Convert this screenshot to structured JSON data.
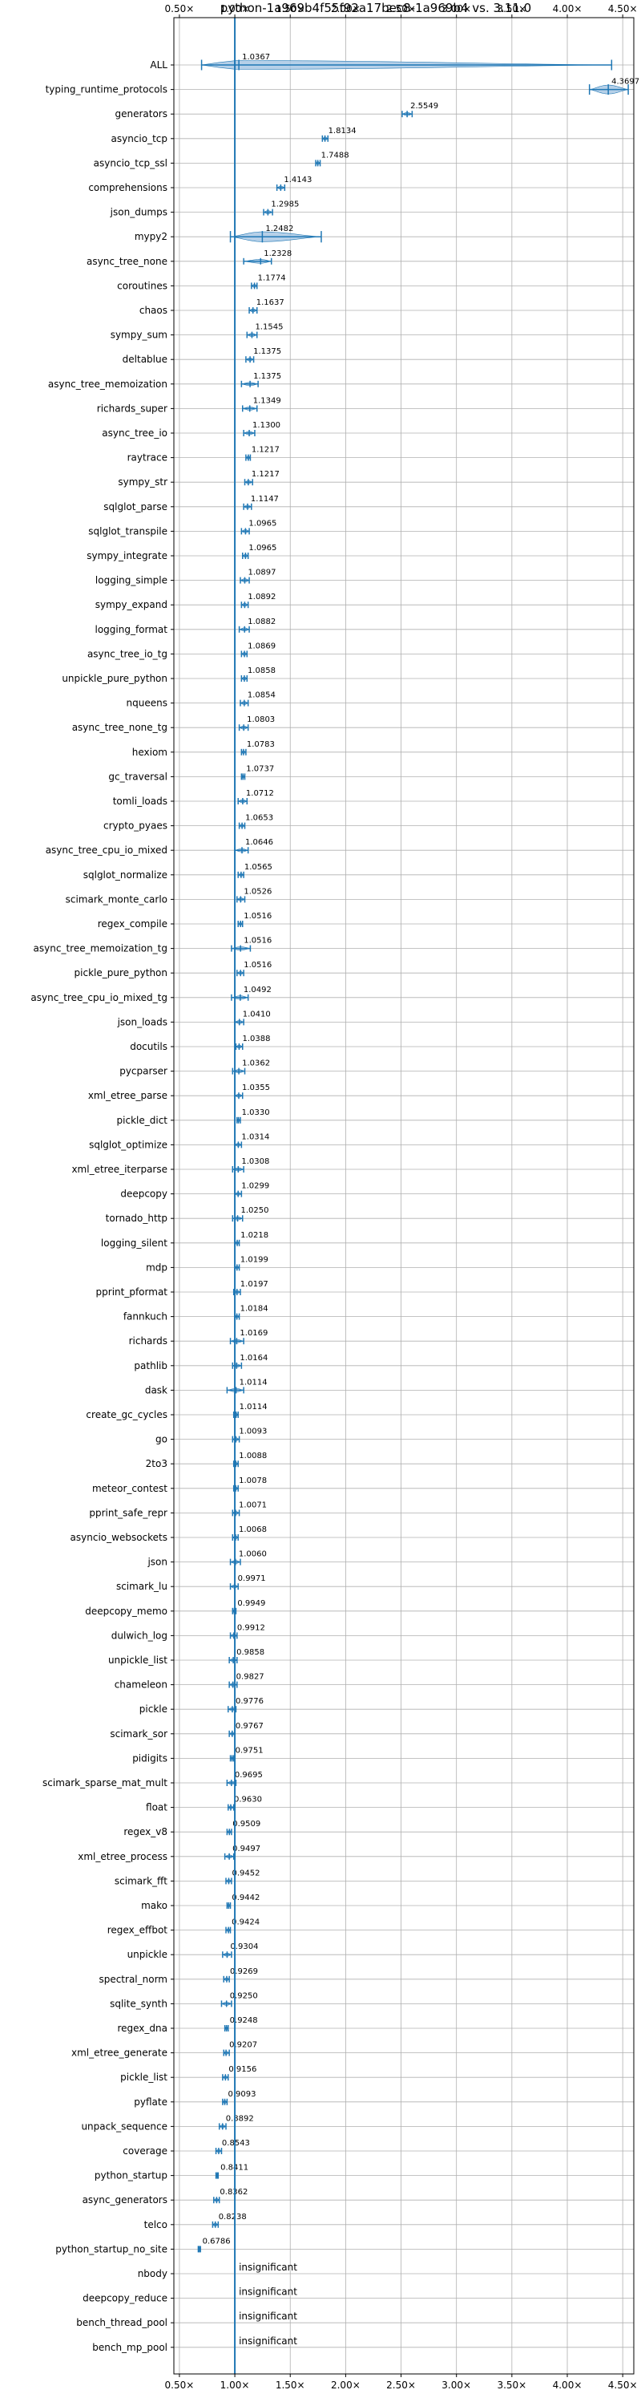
{
  "chart_data": {
    "type": "violin",
    "title": "python-1a969b4f55f92a17bec8-1a969b4 vs. 3.11.0",
    "xlabel": "",
    "ylabel": "",
    "xlim": [
      0.45,
      4.6
    ],
    "x_ticks": [
      0.5,
      1.0,
      1.5,
      2.0,
      2.5,
      3.0,
      3.5,
      4.0,
      4.5
    ],
    "x_tick_labels": [
      "0.50×",
      "1.00×",
      "1.50×",
      "2.00×",
      "2.50×",
      "3.00×",
      "3.50×",
      "4.00×",
      "4.50×"
    ],
    "reference_line": 1.0,
    "grid": true,
    "colors": {
      "fill": "#a9c8e4",
      "stroke": "#1f77b4"
    },
    "insignificant_label": "insignificant",
    "benchmarks": [
      {
        "name": "ALL",
        "label": "1.0367",
        "value": 1.0367,
        "min": 0.7,
        "max": 4.4,
        "w": 0.18
      },
      {
        "name": "typing_runtime_protocols",
        "label": "4.3697",
        "value": 4.3697,
        "min": 4.2,
        "max": 4.55,
        "w": 0.18
      },
      {
        "name": "generators",
        "label": "2.5549",
        "value": 2.5549,
        "min": 2.51,
        "max": 2.6,
        "w": 0.06
      },
      {
        "name": "asyncio_tcp",
        "label": "1.8134",
        "value": 1.8134,
        "min": 1.79,
        "max": 1.84,
        "w": 0.05
      },
      {
        "name": "asyncio_tcp_ssl",
        "label": "1.7488",
        "value": 1.7488,
        "min": 1.73,
        "max": 1.77,
        "w": 0.04
      },
      {
        "name": "comprehensions",
        "label": "1.4143",
        "value": 1.4143,
        "min": 1.38,
        "max": 1.45,
        "w": 0.05
      },
      {
        "name": "json_dumps",
        "label": "1.2985",
        "value": 1.2985,
        "min": 1.26,
        "max": 1.34,
        "w": 0.05
      },
      {
        "name": "mypy2",
        "label": "1.2482",
        "value": 1.2482,
        "min": 0.96,
        "max": 1.78,
        "w": 0.2
      },
      {
        "name": "async_tree_none",
        "label": "1.2328",
        "value": 1.2328,
        "min": 1.08,
        "max": 1.33,
        "w": 0.08
      },
      {
        "name": "coroutines",
        "label": "1.1774",
        "value": 1.1774,
        "min": 1.15,
        "max": 1.2,
        "w": 0.05
      },
      {
        "name": "chaos",
        "label": "1.1637",
        "value": 1.1637,
        "min": 1.13,
        "max": 1.2,
        "w": 0.05
      },
      {
        "name": "sympy_sum",
        "label": "1.1545",
        "value": 1.1545,
        "min": 1.11,
        "max": 1.2,
        "w": 0.05
      },
      {
        "name": "deltablue",
        "label": "1.1375",
        "value": 1.1375,
        "min": 1.1,
        "max": 1.17,
        "w": 0.05
      },
      {
        "name": "async_tree_memoization",
        "label": "1.1375",
        "value": 1.1375,
        "min": 1.06,
        "max": 1.21,
        "w": 0.06
      },
      {
        "name": "richards_super",
        "label": "1.1349",
        "value": 1.1349,
        "min": 1.07,
        "max": 1.2,
        "w": 0.05
      },
      {
        "name": "async_tree_io",
        "label": "1.1300",
        "value": 1.13,
        "min": 1.08,
        "max": 1.18,
        "w": 0.06
      },
      {
        "name": "raytrace",
        "label": "1.1217",
        "value": 1.1217,
        "min": 1.1,
        "max": 1.14,
        "w": 0.04
      },
      {
        "name": "sympy_str",
        "label": "1.1217",
        "value": 1.1217,
        "min": 1.09,
        "max": 1.16,
        "w": 0.05
      },
      {
        "name": "sqlglot_parse",
        "label": "1.1147",
        "value": 1.1147,
        "min": 1.08,
        "max": 1.15,
        "w": 0.05
      },
      {
        "name": "sqlglot_transpile",
        "label": "1.0965",
        "value": 1.0965,
        "min": 1.06,
        "max": 1.13,
        "w": 0.05
      },
      {
        "name": "sympy_integrate",
        "label": "1.0965",
        "value": 1.0965,
        "min": 1.07,
        "max": 1.12,
        "w": 0.04
      },
      {
        "name": "logging_simple",
        "label": "1.0897",
        "value": 1.0897,
        "min": 1.05,
        "max": 1.13,
        "w": 0.05
      },
      {
        "name": "sympy_expand",
        "label": "1.0892",
        "value": 1.0892,
        "min": 1.06,
        "max": 1.12,
        "w": 0.04
      },
      {
        "name": "logging_format",
        "label": "1.0882",
        "value": 1.0882,
        "min": 1.04,
        "max": 1.13,
        "w": 0.05
      },
      {
        "name": "async_tree_io_tg",
        "label": "1.0869",
        "value": 1.0869,
        "min": 1.06,
        "max": 1.11,
        "w": 0.04
      },
      {
        "name": "unpickle_pure_python",
        "label": "1.0858",
        "value": 1.0858,
        "min": 1.06,
        "max": 1.11,
        "w": 0.04
      },
      {
        "name": "nqueens",
        "label": "1.0854",
        "value": 1.0854,
        "min": 1.05,
        "max": 1.12,
        "w": 0.05
      },
      {
        "name": "async_tree_none_tg",
        "label": "1.0803",
        "value": 1.0803,
        "min": 1.04,
        "max": 1.12,
        "w": 0.05
      },
      {
        "name": "hexiom",
        "label": "1.0783",
        "value": 1.0783,
        "min": 1.06,
        "max": 1.1,
        "w": 0.04
      },
      {
        "name": "gc_traversal",
        "label": "1.0737",
        "value": 1.0737,
        "min": 1.06,
        "max": 1.09,
        "w": 0.03
      },
      {
        "name": "tomli_loads",
        "label": "1.0712",
        "value": 1.0712,
        "min": 1.03,
        "max": 1.11,
        "w": 0.05
      },
      {
        "name": "crypto_pyaes",
        "label": "1.0653",
        "value": 1.0653,
        "min": 1.04,
        "max": 1.09,
        "w": 0.04
      },
      {
        "name": "async_tree_cpu_io_mixed",
        "label": "1.0646",
        "value": 1.0646,
        "min": 1.0,
        "max": 1.12,
        "w": 0.06
      },
      {
        "name": "sqlglot_normalize",
        "label": "1.0565",
        "value": 1.0565,
        "min": 1.03,
        "max": 1.08,
        "w": 0.04
      },
      {
        "name": "scimark_monte_carlo",
        "label": "1.0526",
        "value": 1.0526,
        "min": 1.02,
        "max": 1.09,
        "w": 0.05
      },
      {
        "name": "regex_compile",
        "label": "1.0516",
        "value": 1.0516,
        "min": 1.03,
        "max": 1.07,
        "w": 0.04
      },
      {
        "name": "async_tree_memoization_tg",
        "label": "1.0516",
        "value": 1.0516,
        "min": 0.97,
        "max": 1.14,
        "w": 0.07
      },
      {
        "name": "pickle_pure_python",
        "label": "1.0516",
        "value": 1.0516,
        "min": 1.02,
        "max": 1.08,
        "w": 0.04
      },
      {
        "name": "async_tree_cpu_io_mixed_tg",
        "label": "1.0492",
        "value": 1.0492,
        "min": 0.97,
        "max": 1.12,
        "w": 0.07
      },
      {
        "name": "json_loads",
        "label": "1.0410",
        "value": 1.041,
        "min": 1.0,
        "max": 1.08,
        "w": 0.05
      },
      {
        "name": "docutils",
        "label": "1.0388",
        "value": 1.0388,
        "min": 1.01,
        "max": 1.07,
        "w": 0.04
      },
      {
        "name": "pycparser",
        "label": "1.0362",
        "value": 1.0362,
        "min": 0.98,
        "max": 1.09,
        "w": 0.06
      },
      {
        "name": "xml_etree_parse",
        "label": "1.0355",
        "value": 1.0355,
        "min": 1.0,
        "max": 1.07,
        "w": 0.05
      },
      {
        "name": "pickle_dict",
        "label": "1.0330",
        "value": 1.033,
        "min": 1.02,
        "max": 1.05,
        "w": 0.03
      },
      {
        "name": "sqlglot_optimize",
        "label": "1.0314",
        "value": 1.0314,
        "min": 1.0,
        "max": 1.06,
        "w": 0.04
      },
      {
        "name": "xml_etree_iterparse",
        "label": "1.0308",
        "value": 1.0308,
        "min": 0.98,
        "max": 1.08,
        "w": 0.06
      },
      {
        "name": "deepcopy",
        "label": "1.0299",
        "value": 1.0299,
        "min": 1.0,
        "max": 1.06,
        "w": 0.04
      },
      {
        "name": "tornado_http",
        "label": "1.0250",
        "value": 1.025,
        "min": 0.98,
        "max": 1.07,
        "w": 0.05
      },
      {
        "name": "logging_silent",
        "label": "1.0218",
        "value": 1.0218,
        "min": 1.0,
        "max": 1.04,
        "w": 0.03
      },
      {
        "name": "mdp",
        "label": "1.0199",
        "value": 1.0199,
        "min": 1.0,
        "max": 1.04,
        "w": 0.03
      },
      {
        "name": "pprint_pformat",
        "label": "1.0197",
        "value": 1.0197,
        "min": 0.99,
        "max": 1.05,
        "w": 0.04
      },
      {
        "name": "fannkuch",
        "label": "1.0184",
        "value": 1.0184,
        "min": 1.0,
        "max": 1.04,
        "w": 0.03
      },
      {
        "name": "richards",
        "label": "1.0169",
        "value": 1.0169,
        "min": 0.96,
        "max": 1.08,
        "w": 0.06
      },
      {
        "name": "pathlib",
        "label": "1.0164",
        "value": 1.0164,
        "min": 0.98,
        "max": 1.06,
        "w": 0.05
      },
      {
        "name": "dask",
        "label": "1.0114",
        "value": 1.0114,
        "min": 0.93,
        "max": 1.08,
        "w": 0.07
      },
      {
        "name": "create_gc_cycles",
        "label": "1.0114",
        "value": 1.0114,
        "min": 0.99,
        "max": 1.03,
        "w": 0.03
      },
      {
        "name": "go",
        "label": "1.0093",
        "value": 1.0093,
        "min": 0.98,
        "max": 1.04,
        "w": 0.04
      },
      {
        "name": "2to3",
        "label": "1.0088",
        "value": 1.0088,
        "min": 0.99,
        "max": 1.03,
        "w": 0.03
      },
      {
        "name": "meteor_contest",
        "label": "1.0078",
        "value": 1.0078,
        "min": 0.99,
        "max": 1.03,
        "w": 0.03
      },
      {
        "name": "pprint_safe_repr",
        "label": "1.0071",
        "value": 1.0071,
        "min": 0.98,
        "max": 1.04,
        "w": 0.04
      },
      {
        "name": "asyncio_websockets",
        "label": "1.0068",
        "value": 1.0068,
        "min": 0.98,
        "max": 1.03,
        "w": 0.03
      },
      {
        "name": "json",
        "label": "1.0060",
        "value": 1.006,
        "min": 0.96,
        "max": 1.05,
        "w": 0.05
      },
      {
        "name": "scimark_lu",
        "label": "0.9971",
        "value": 0.9971,
        "min": 0.96,
        "max": 1.03,
        "w": 0.05
      },
      {
        "name": "deepcopy_memo",
        "label": "0.9949",
        "value": 0.9949,
        "min": 0.98,
        "max": 1.01,
        "w": 0.03
      },
      {
        "name": "dulwich_log",
        "label": "0.9912",
        "value": 0.9912,
        "min": 0.96,
        "max": 1.02,
        "w": 0.04
      },
      {
        "name": "unpickle_list",
        "label": "0.9858",
        "value": 0.9858,
        "min": 0.95,
        "max": 1.02,
        "w": 0.05
      },
      {
        "name": "chameleon",
        "label": "0.9827",
        "value": 0.9827,
        "min": 0.95,
        "max": 1.02,
        "w": 0.05
      },
      {
        "name": "pickle",
        "label": "0.9776",
        "value": 0.9776,
        "min": 0.94,
        "max": 1.01,
        "w": 0.05
      },
      {
        "name": "scimark_sor",
        "label": "0.9767",
        "value": 0.9767,
        "min": 0.95,
        "max": 1.0,
        "w": 0.04
      },
      {
        "name": "pidigits",
        "label": "0.9751",
        "value": 0.9751,
        "min": 0.96,
        "max": 0.99,
        "w": 0.03
      },
      {
        "name": "scimark_sparse_mat_mult",
        "label": "0.9695",
        "value": 0.9695,
        "min": 0.93,
        "max": 1.01,
        "w": 0.05
      },
      {
        "name": "float",
        "label": "0.9630",
        "value": 0.963,
        "min": 0.94,
        "max": 0.99,
        "w": 0.04
      },
      {
        "name": "regex_v8",
        "label": "0.9509",
        "value": 0.9509,
        "min": 0.93,
        "max": 0.97,
        "w": 0.03
      },
      {
        "name": "xml_etree_process",
        "label": "0.9497",
        "value": 0.9497,
        "min": 0.91,
        "max": 0.99,
        "w": 0.05
      },
      {
        "name": "scimark_fft",
        "label": "0.9452",
        "value": 0.9452,
        "min": 0.92,
        "max": 0.97,
        "w": 0.04
      },
      {
        "name": "mako",
        "label": "0.9442",
        "value": 0.9442,
        "min": 0.93,
        "max": 0.96,
        "w": 0.03
      },
      {
        "name": "regex_effbot",
        "label": "0.9424",
        "value": 0.9424,
        "min": 0.92,
        "max": 0.96,
        "w": 0.03
      },
      {
        "name": "unpickle",
        "label": "0.9304",
        "value": 0.9304,
        "min": 0.89,
        "max": 0.97,
        "w": 0.05
      },
      {
        "name": "spectral_norm",
        "label": "0.9269",
        "value": 0.9269,
        "min": 0.9,
        "max": 0.95,
        "w": 0.04
      },
      {
        "name": "sqlite_synth",
        "label": "0.9250",
        "value": 0.925,
        "min": 0.88,
        "max": 0.97,
        "w": 0.06
      },
      {
        "name": "regex_dna",
        "label": "0.9248",
        "value": 0.9248,
        "min": 0.91,
        "max": 0.94,
        "w": 0.03
      },
      {
        "name": "xml_etree_generate",
        "label": "0.9207",
        "value": 0.9207,
        "min": 0.9,
        "max": 0.95,
        "w": 0.04
      },
      {
        "name": "pickle_list",
        "label": "0.9156",
        "value": 0.9156,
        "min": 0.89,
        "max": 0.94,
        "w": 0.04
      },
      {
        "name": "pyflate",
        "label": "0.9093",
        "value": 0.9093,
        "min": 0.89,
        "max": 0.93,
        "w": 0.03
      },
      {
        "name": "unpack_sequence",
        "label": "0.8892",
        "value": 0.8892,
        "min": 0.86,
        "max": 0.92,
        "w": 0.04
      },
      {
        "name": "coverage",
        "label": "0.8543",
        "value": 0.8543,
        "min": 0.83,
        "max": 0.88,
        "w": 0.04
      },
      {
        "name": "python_startup",
        "label": "0.8411",
        "value": 0.8411,
        "min": 0.83,
        "max": 0.85,
        "w": 0.02
      },
      {
        "name": "async_generators",
        "label": "0.8362",
        "value": 0.8362,
        "min": 0.81,
        "max": 0.86,
        "w": 0.04
      },
      {
        "name": "telco",
        "label": "0.8238",
        "value": 0.8238,
        "min": 0.8,
        "max": 0.85,
        "w": 0.04
      },
      {
        "name": "python_startup_no_site",
        "label": "0.6786",
        "value": 0.6786,
        "min": 0.67,
        "max": 0.69,
        "w": 0.02
      },
      {
        "name": "nbody",
        "label": "insignificant",
        "value": null
      },
      {
        "name": "deepcopy_reduce",
        "label": "insignificant",
        "value": null
      },
      {
        "name": "bench_thread_pool",
        "label": "insignificant",
        "value": null
      },
      {
        "name": "bench_mp_pool",
        "label": "insignificant",
        "value": null
      }
    ]
  }
}
